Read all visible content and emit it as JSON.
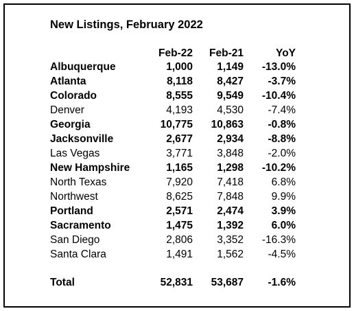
{
  "title": "New Listings, February 2022",
  "table": {
    "header": [
      "Feb-22",
      "Feb-21",
      "YoY"
    ],
    "rows": [
      {
        "cells": [
          "Albuquerque",
          "1,000",
          "1,149",
          "-13.0%"
        ],
        "bold": true
      },
      {
        "cells": [
          "Atlanta",
          "8,118",
          "8,427",
          "-3.7%"
        ],
        "bold": true
      },
      {
        "cells": [
          "Colorado",
          "8,555",
          "9,549",
          "-10.4%"
        ],
        "bold": true
      },
      {
        "cells": [
          "Denver",
          "4,193",
          "4,530",
          "-7.4%"
        ],
        "bold": false
      },
      {
        "cells": [
          "Georgia",
          "10,775",
          "10,863",
          "-0.8%"
        ],
        "bold": true
      },
      {
        "cells": [
          "Jacksonville",
          "2,677",
          "2,934",
          "-8.8%"
        ],
        "bold": true
      },
      {
        "cells": [
          "Las Vegas",
          "3,771",
          "3,848",
          "-2.0%"
        ],
        "bold": false
      },
      {
        "cells": [
          "New Hampshire",
          "1,165",
          "1,298",
          "-10.2%"
        ],
        "bold": true
      },
      {
        "cells": [
          "North Texas",
          "7,920",
          "7,418",
          "6.8%"
        ],
        "bold": false
      },
      {
        "cells": [
          "Northwest",
          "8,625",
          "7,848",
          "9.9%"
        ],
        "bold": false
      },
      {
        "cells": [
          "Portland",
          "2,571",
          "2,474",
          "3.9%"
        ],
        "bold": true
      },
      {
        "cells": [
          "Sacramento",
          "1,475",
          "1,392",
          "6.0%"
        ],
        "bold": true
      },
      {
        "cells": [
          "San Diego",
          "2,806",
          "3,352",
          "-16.3%"
        ],
        "bold": false
      },
      {
        "cells": [
          "Santa Clara",
          "1,491",
          "1,562",
          "-4.5%"
        ],
        "bold": false
      }
    ],
    "total": {
      "cells": [
        "Total",
        "52,831",
        "53,687",
        "-1.6%"
      ],
      "bold": true
    }
  }
}
